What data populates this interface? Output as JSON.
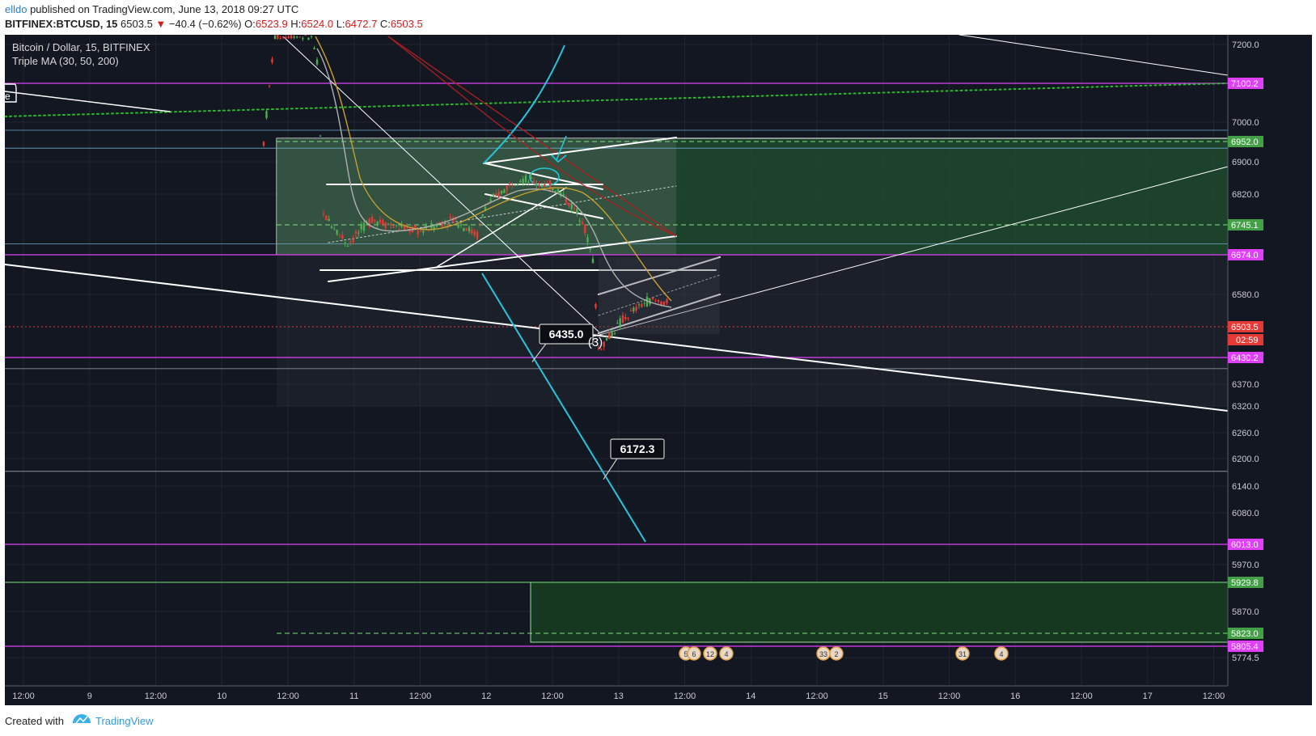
{
  "header": {
    "author": "elldo",
    "published_text": " published on TradingView.com, June 13, 2018 09:27 UTC",
    "symbol": "BITFINEX:BTCUSD, 15",
    "last": "6503.5",
    "change": "−40.4 (−0.62%)",
    "open_label": "O:",
    "open": "6523.9",
    "high_label": "H:",
    "high": "6524.0",
    "low_label": "L:",
    "low": "6472.7",
    "close_label": "C:",
    "close": "6503.5"
  },
  "legend": {
    "title": "Bitcoin / Dollar, 15, BITFINEX",
    "indicator": "Triple MA (30, 50, 200)"
  },
  "footer": {
    "created_with": "Created with",
    "brand": "TradingView"
  },
  "colors": {
    "background": "#131722",
    "candle_up": "#4caf50",
    "candle_down": "#e53935",
    "magenta": "#e040fb",
    "green_zone": "#43a047",
    "cyan": "#26c6da",
    "ma30": "#b0b0b0",
    "ma50": "#c8a032",
    "ma200": "#b02020"
  },
  "chart_data": {
    "type": "candlestick",
    "timeframe": "15",
    "y_range": [
      5750,
      7240
    ],
    "x_ticks": [
      "12:00",
      "9",
      "12:00",
      "10",
      "12:00",
      "11",
      "12:00",
      "12",
      "12:00",
      "13",
      "12:00",
      "14",
      "12:00",
      "15",
      "12:00",
      "16",
      "12:00",
      "17",
      "12:00"
    ],
    "y_ticks": [
      7200.0,
      7000.0,
      6900.0,
      6820.0,
      6580.0,
      6370.0,
      6320.0,
      6260.0,
      6200.0,
      6140.0,
      6080.0,
      5970.0,
      5870.0,
      5774.5
    ],
    "price_tags": [
      {
        "value": 7100.2,
        "label": "7100.2",
        "color": "#e040fb"
      },
      {
        "value": 6952.0,
        "label": "6952.0",
        "color": "#43a047"
      },
      {
        "value": 6745.1,
        "label": "6745.1",
        "color": "#43a047"
      },
      {
        "value": 6674.0,
        "label": "6674.0",
        "color": "#e040fb"
      },
      {
        "value": 6503.5,
        "label": "6503.5",
        "color": "#e53935"
      },
      {
        "value": 6430.2,
        "label": "6430.2",
        "color": "#e040fb"
      },
      {
        "value": 6013.0,
        "label": "6013.0",
        "color": "#e040fb"
      },
      {
        "value": 5929.8,
        "label": "5929.8",
        "color": "#43a047"
      },
      {
        "value": 5823.0,
        "label": "5823.0",
        "color": "#43a047"
      },
      {
        "value": 5805.4,
        "label": "5805.4",
        "color": "#e040fb"
      }
    ],
    "countdown": "02:59",
    "callouts": [
      {
        "label": "6435.0",
        "value": 6435.0
      },
      {
        "label": "6172.3",
        "value": 6172.3
      }
    ],
    "wave_label": "(3)",
    "last_price": 6503.5,
    "events": [
      {
        "label": "5"
      },
      {
        "label": "6"
      },
      {
        "label": "12"
      },
      {
        "label": "4"
      },
      {
        "label": "33"
      },
      {
        "label": "2"
      },
      {
        "label": "31"
      },
      {
        "label": "4"
      }
    ],
    "ma_periods": [
      30,
      50,
      200
    ]
  }
}
